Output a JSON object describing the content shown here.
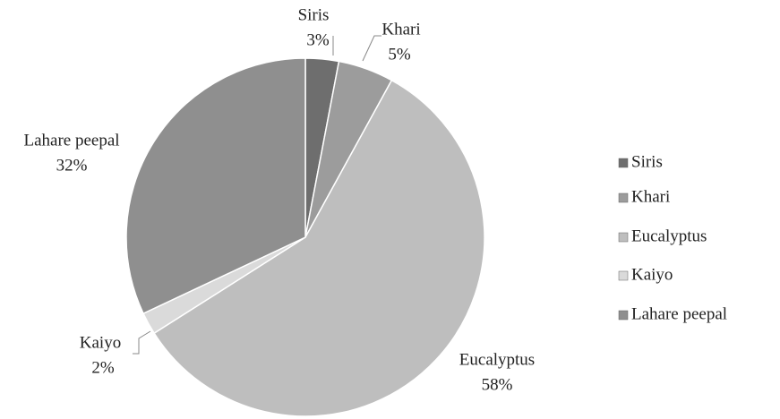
{
  "chart_data": {
    "type": "pie",
    "categories": [
      "Siris",
      "Khari",
      "Eucalyptus",
      "Kaiyo",
      "Lahare peepal"
    ],
    "values": [
      3,
      5,
      58,
      2,
      32
    ],
    "value_labels": [
      "3%",
      "5%",
      "58%",
      "2%",
      "32%"
    ],
    "colors": [
      "#6e6e6e",
      "#9c9c9c",
      "#bebebe",
      "#dadada",
      "#8f8f8f"
    ],
    "legend": "right"
  }
}
